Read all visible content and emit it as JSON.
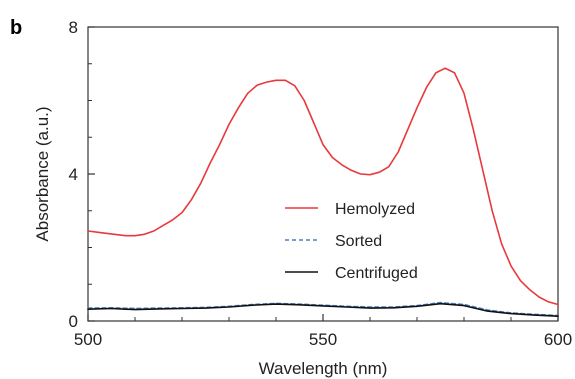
{
  "chart_data": {
    "type": "line",
    "panel_label": "b",
    "title": "",
    "xlabel": "Wavelength (nm)",
    "ylabel": "Absorbance (a.u.)",
    "xlim": [
      500,
      600
    ],
    "ylim": [
      0,
      8
    ],
    "x_ticks": [
      500,
      550,
      600
    ],
    "y_ticks": [
      0,
      4,
      8
    ],
    "legend_position": "center-right",
    "series": [
      {
        "name": "Hemolyzed",
        "color": "#e8393c",
        "dash": "solid",
        "x": [
          500,
          503,
          506,
          508,
          510,
          512,
          514,
          516,
          518,
          520,
          522,
          524,
          526,
          528,
          530,
          532,
          534,
          536,
          538,
          540,
          542,
          544,
          546,
          548,
          550,
          552,
          554,
          556,
          558,
          560,
          562,
          564,
          566,
          568,
          570,
          572,
          574,
          576,
          578,
          580,
          582,
          584,
          586,
          588,
          590,
          592,
          594,
          596,
          598,
          600
        ],
        "values": [
          2.45,
          2.4,
          2.35,
          2.32,
          2.32,
          2.36,
          2.45,
          2.6,
          2.75,
          2.95,
          3.3,
          3.75,
          4.3,
          4.8,
          5.35,
          5.8,
          6.2,
          6.42,
          6.5,
          6.55,
          6.55,
          6.4,
          6.0,
          5.4,
          4.8,
          4.45,
          4.25,
          4.1,
          4.0,
          3.98,
          4.05,
          4.2,
          4.6,
          5.2,
          5.8,
          6.35,
          6.75,
          6.88,
          6.75,
          6.2,
          5.2,
          4.1,
          3.0,
          2.1,
          1.5,
          1.1,
          0.85,
          0.65,
          0.52,
          0.45
        ]
      },
      {
        "name": "Sorted",
        "color": "#4a7fc1",
        "dash": "dashed",
        "x": [
          500,
          505,
          510,
          515,
          520,
          525,
          530,
          535,
          540,
          545,
          550,
          555,
          560,
          565,
          570,
          575,
          580,
          585,
          590,
          595,
          600
        ],
        "values": [
          0.35,
          0.36,
          0.34,
          0.35,
          0.36,
          0.37,
          0.4,
          0.45,
          0.48,
          0.46,
          0.43,
          0.4,
          0.38,
          0.38,
          0.42,
          0.5,
          0.45,
          0.3,
          0.22,
          0.18,
          0.15
        ]
      },
      {
        "name": "Centrifuged",
        "color": "#111111",
        "dash": "solid",
        "x": [
          500,
          505,
          510,
          515,
          520,
          525,
          530,
          535,
          540,
          545,
          550,
          555,
          560,
          565,
          570,
          575,
          580,
          585,
          590,
          595,
          600
        ],
        "values": [
          0.32,
          0.34,
          0.31,
          0.33,
          0.34,
          0.35,
          0.38,
          0.43,
          0.46,
          0.44,
          0.41,
          0.38,
          0.35,
          0.36,
          0.4,
          0.47,
          0.42,
          0.27,
          0.2,
          0.16,
          0.13
        ]
      }
    ]
  }
}
